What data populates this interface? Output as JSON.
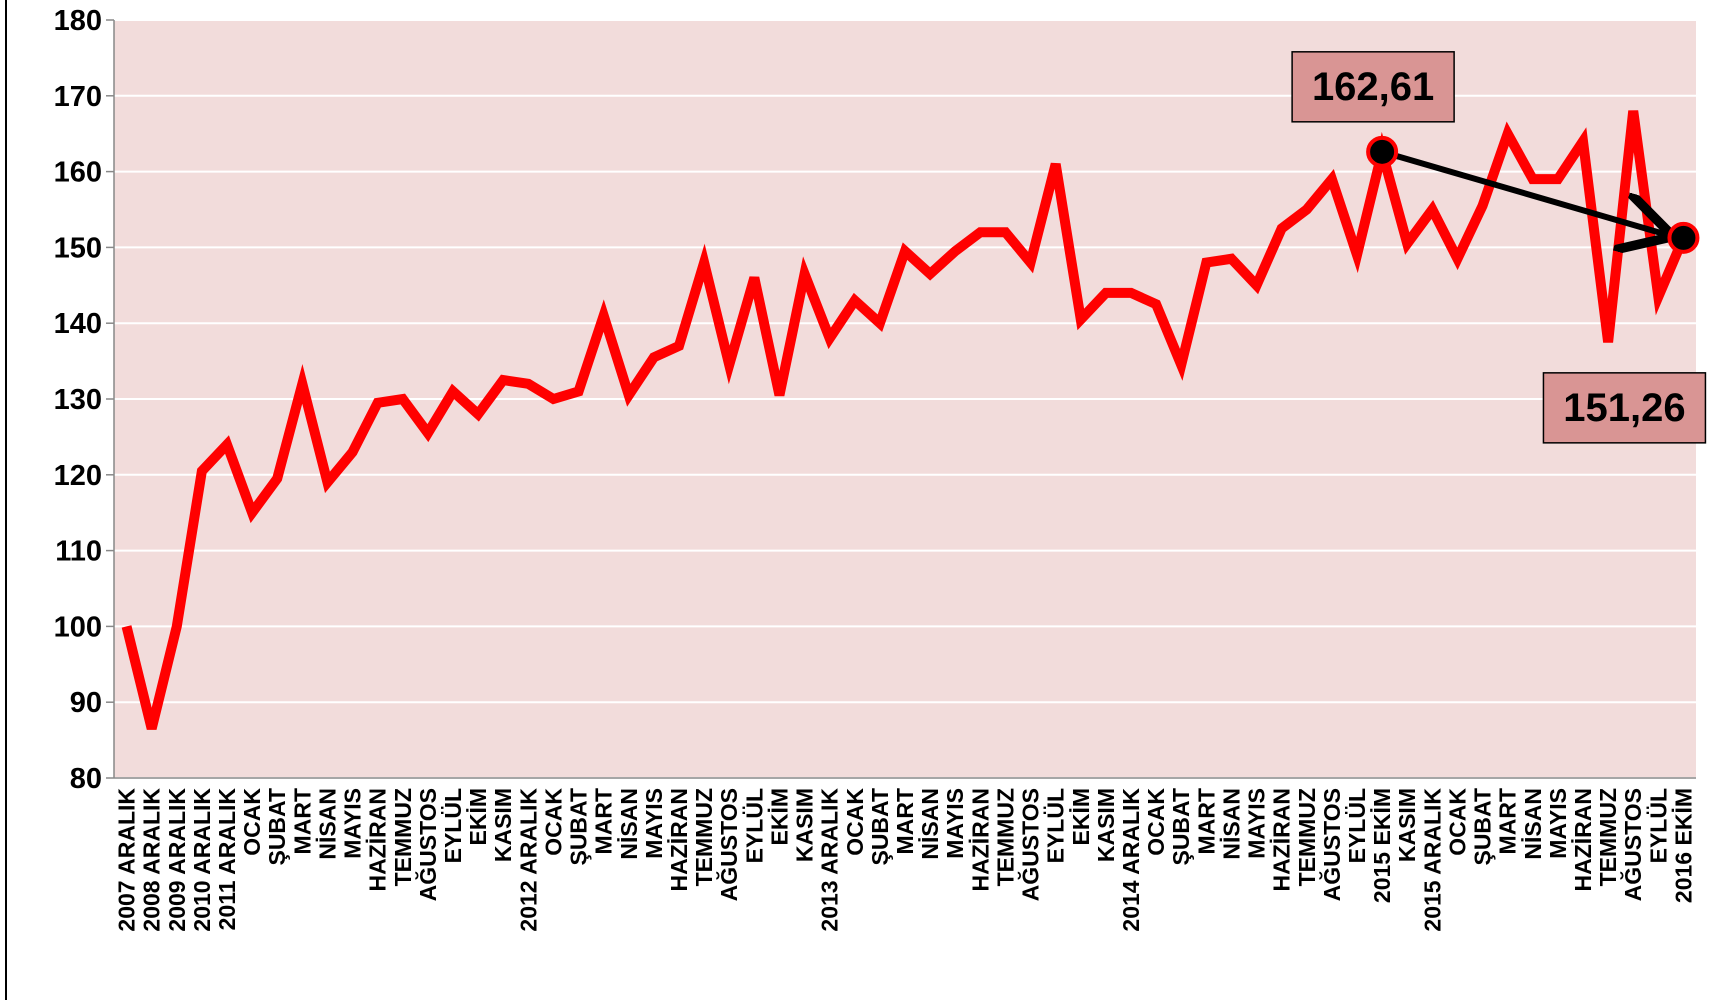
{
  "chart_data": {
    "type": "line",
    "categories": [
      "2007 ARALIK",
      "2008 ARALIK",
      "2009 ARALIK",
      "2010 ARALIK",
      "2011 ARALIK",
      "OCAK",
      "ŞUBAT",
      "MART",
      "NİSAN",
      "MAYIS",
      "HAZİRAN",
      "TEMMUZ",
      "AĞUSTOS",
      "EYLÜL",
      "EKİM",
      "KASIM",
      "2012 ARALIK",
      "OCAK",
      "ŞUBAT",
      "MART",
      "NİSAN",
      "MAYIS",
      "HAZİRAN",
      "TEMMUZ",
      "AĞUSTOS",
      "EYLÜL",
      "EKİM",
      "KASIM",
      "2013 ARALIK",
      "OCAK",
      "ŞUBAT",
      "MART",
      "NİSAN",
      "MAYIS",
      "HAZİRAN",
      "TEMMUZ",
      "AĞUSTOS",
      "EYLÜL",
      "EKİM",
      "KASIM",
      "2014 ARALIK",
      "OCAK",
      "ŞUBAT",
      "MART",
      "NİSAN",
      "MAYIS",
      "HAZİRAN",
      "TEMMUZ",
      "AĞUSTOS",
      "EYLÜL",
      "2015 EKİM",
      "KASIM",
      "2015 ARALIK",
      "OCAK",
      "ŞUBAT",
      "MART",
      "NİSAN",
      "MAYIS",
      "HAZİRAN",
      "TEMMUZ",
      "AĞUSTOS",
      "EYLÜL",
      "2016 EKİM"
    ],
    "values": [
      100,
      86.5,
      100,
      120.5,
      124,
      115,
      119.5,
      132,
      119,
      123,
      129.5,
      130,
      125.5,
      131,
      128,
      132.5,
      132,
      130,
      131,
      141,
      130.5,
      135.5,
      137,
      148,
      134.5,
      146,
      130.5,
      146.5,
      138,
      143,
      140,
      149.5,
      146.5,
      149.5,
      152,
      152,
      148,
      161,
      140.5,
      144,
      144,
      142.5,
      134.5,
      148,
      148.5,
      145,
      152.5,
      155,
      159,
      149,
      162.61,
      150.5,
      155,
      148.5,
      155.5,
      165,
      159,
      159,
      164,
      137.5,
      168,
      143.5,
      151.26
    ],
    "value_labels": [
      null,
      null,
      null,
      null,
      null,
      null,
      null,
      null,
      null,
      null,
      null,
      null,
      null,
      null,
      null,
      null,
      null,
      null,
      null,
      null,
      null,
      null,
      null,
      null,
      null,
      null,
      null,
      null,
      null,
      null,
      null,
      null,
      null,
      null,
      null,
      null,
      null,
      null,
      null,
      null,
      null,
      null,
      null,
      null,
      null,
      null,
      null,
      null,
      null,
      null,
      "162,61",
      null,
      null,
      null,
      null,
      null,
      null,
      null,
      null,
      null,
      null,
      null,
      "151,26"
    ],
    "color": "#ff0000",
    "ylim": [
      80,
      180
    ],
    "yticks": [
      80,
      90,
      100,
      110,
      120,
      130,
      140,
      150,
      160,
      170,
      180
    ],
    "grid": true
  }
}
